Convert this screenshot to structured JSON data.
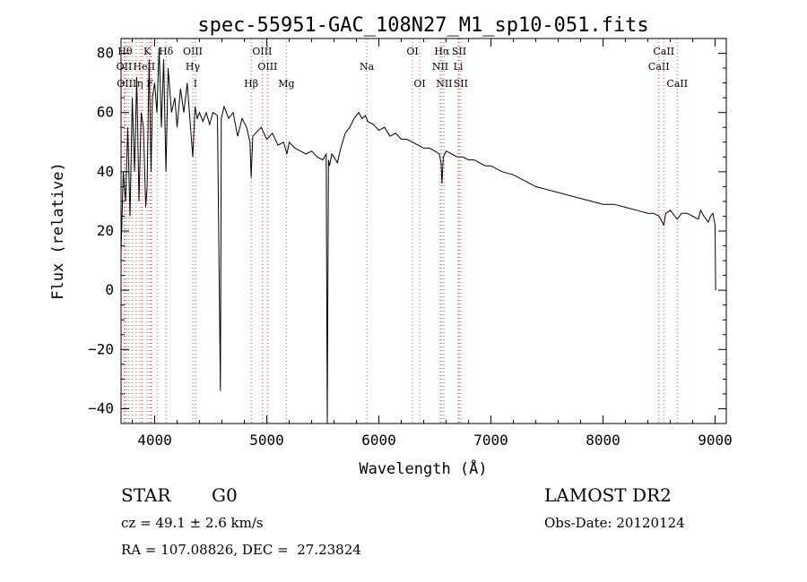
{
  "chart_data": {
    "type": "line",
    "title": "spec-55951-GAC_108N27_M1_sp10-051.fits",
    "xlabel": "Wavelength (Å)",
    "ylabel": "Flux (relative)",
    "xlim": [
      3700,
      9100
    ],
    "ylim": [
      -45,
      85
    ],
    "xticks": [
      4000,
      5000,
      6000,
      7000,
      8000,
      9000
    ],
    "xtick_labels": [
      "4000",
      "5000",
      "6000",
      "7000",
      "8000",
      "9000"
    ],
    "yticks": [
      -40,
      -20,
      0,
      20,
      40,
      60,
      80
    ],
    "ytick_labels": [
      "−40",
      "−20",
      "0",
      "20",
      "40",
      "60",
      "80"
    ],
    "grid": false,
    "line_color": "#000000",
    "marker_color": "#e34a4a",
    "series": [
      {
        "x": [
          3700,
          3720,
          3740,
          3760,
          3780,
          3800,
          3820,
          3840,
          3860,
          3880,
          3900,
          3920,
          3933,
          3950,
          3968,
          3980,
          4000,
          4020,
          4040,
          4060,
          4080,
          4101,
          4120,
          4150,
          4180,
          4200,
          4230,
          4260,
          4290,
          4320,
          4340,
          4360,
          4380,
          4400,
          4430,
          4460,
          4490,
          4520,
          4560,
          4586,
          4590,
          4594,
          4620,
          4660,
          4700,
          4740,
          4780,
          4820,
          4850,
          4861,
          4875,
          4900,
          4950,
          5000,
          5050,
          5100,
          5150,
          5180,
          5200,
          5250,
          5300,
          5350,
          5400,
          5450,
          5500,
          5530,
          5540,
          5550,
          5560,
          5580,
          5600,
          5630,
          5660,
          5700,
          5740,
          5780,
          5820,
          5850,
          5880,
          5900,
          5950,
          6000,
          6050,
          6100,
          6150,
          6200,
          6250,
          6300,
          6350,
          6400,
          6450,
          6500,
          6540,
          6555,
          6563,
          6575,
          6600,
          6650,
          6700,
          6750,
          6800,
          6850,
          6900,
          6950,
          7000,
          7100,
          7200,
          7300,
          7400,
          7500,
          7600,
          7700,
          7800,
          7900,
          8000,
          8100,
          8200,
          8300,
          8400,
          8450,
          8500,
          8542,
          8560,
          8600,
          8662,
          8700,
          8750,
          8800,
          8850,
          8870,
          8900,
          8940,
          8960,
          8980,
          9000,
          9005
        ],
        "y": [
          13,
          40,
          30,
          55,
          25,
          65,
          40,
          72,
          30,
          60,
          55,
          28,
          35,
          78,
          40,
          65,
          70,
          60,
          82,
          55,
          78,
          40,
          75,
          60,
          65,
          55,
          68,
          60,
          70,
          55,
          45,
          62,
          58,
          60,
          57,
          60,
          56,
          60,
          59,
          -34,
          10,
          58,
          62,
          58,
          60,
          52,
          58,
          55,
          50,
          38,
          52,
          53,
          55,
          51,
          53,
          49,
          50,
          46,
          50,
          48,
          47,
          46,
          47,
          45,
          44,
          46,
          -45,
          44,
          42,
          46,
          45,
          43,
          48,
          53,
          55,
          58,
          60,
          58,
          59,
          57,
          56,
          54,
          55,
          52,
          53,
          51,
          51,
          50,
          49,
          48,
          48,
          47,
          46,
          43,
          36,
          45,
          47,
          46,
          45,
          45,
          44,
          44,
          43,
          42,
          42,
          40,
          39,
          37,
          35,
          34,
          33,
          32,
          31,
          30,
          29,
          29,
          28,
          27,
          26,
          26,
          25,
          22,
          26,
          27,
          24,
          26,
          26,
          25,
          24,
          27,
          25,
          23,
          25,
          26,
          22,
          0
        ]
      }
    ],
    "line_markers": [
      {
        "x": 3735,
        "label": "Hθ",
        "row": 1
      },
      {
        "x": 3728,
        "label": "OII",
        "row": 2
      },
      {
        "x": 3750,
        "label": "OIII",
        "row": 3
      },
      {
        "x": 3771,
        "label": "",
        "row": 0
      },
      {
        "x": 3798,
        "label": "",
        "row": 0
      },
      {
        "x": 3835,
        "label": "",
        "row": 0
      },
      {
        "x": 3889,
        "label": "HeI",
        "row": 2
      },
      {
        "x": 3869,
        "label": "η",
        "row": 3
      },
      {
        "x": 3933,
        "label": "K",
        "row": 1
      },
      {
        "x": 3968,
        "label": "",
        "row": 0
      },
      {
        "x": 3970,
        "label": "II",
        "row": 2
      },
      {
        "x": 3957,
        "label": "F",
        "row": 3
      },
      {
        "x": 4101,
        "label": "Hδ",
        "row": 1
      },
      {
        "x": 4026,
        "label": "",
        "row": 0
      },
      {
        "x": 4340,
        "label": "OIII",
        "row": 1
      },
      {
        "x": 4340,
        "label": "Hγ",
        "row": 2
      },
      {
        "x": 4363,
        "label": "I",
        "row": 3
      },
      {
        "x": 4861,
        "label": "Hβ",
        "row": 3
      },
      {
        "x": 4959,
        "label": "OIII",
        "row": 1
      },
      {
        "x": 5007,
        "label": "OIII",
        "row": 2
      },
      {
        "x": 5175,
        "label": "Mg",
        "row": 3
      },
      {
        "x": 5893,
        "label": "Na",
        "row": 2
      },
      {
        "x": 6300,
        "label": "OI",
        "row": 1
      },
      {
        "x": 6364,
        "label": "OI",
        "row": 3
      },
      {
        "x": 6563,
        "label": "Hα",
        "row": 1
      },
      {
        "x": 6548,
        "label": "NII",
        "row": 2
      },
      {
        "x": 6583,
        "label": "NII",
        "row": 3
      },
      {
        "x": 6716,
        "label": "SII",
        "row": 1
      },
      {
        "x": 6708,
        "label": "Li",
        "row": 2
      },
      {
        "x": 6731,
        "label": "SII",
        "row": 3
      },
      {
        "x": 8498,
        "label": "CaII",
        "row": 2
      },
      {
        "x": 8542,
        "label": "CaII",
        "row": 1
      },
      {
        "x": 8662,
        "label": "CaII",
        "row": 3
      }
    ]
  },
  "info": {
    "object_class": "STAR",
    "subclass": "G0",
    "survey": "LAMOST DR2",
    "cz": "cz = 49.1 ± 2.6 km/s",
    "obs_date": "Obs-Date: 20120124",
    "coords": "RA = 107.08826, DEC =  27.23824"
  }
}
